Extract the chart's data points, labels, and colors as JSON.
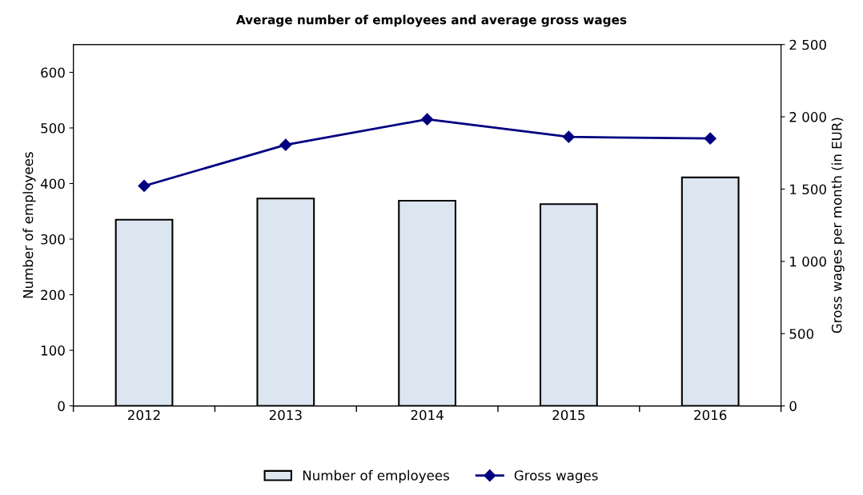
{
  "chart_data": {
    "type": "bar",
    "title": "Average number of employees and average gross wages",
    "categories": [
      "2012",
      "2013",
      "2014",
      "2015",
      "2016"
    ],
    "series": [
      {
        "name": "Number of employees",
        "color": "#dce6f1",
        "values": [
          335,
          373,
          369,
          363,
          411
        ]
      },
      {
        "name": "Gross wages",
        "type": "line",
        "axis": "y2",
        "color": "#000080",
        "marker": "diamond",
        "values": [
          1522,
          1806,
          1983,
          1861,
          1850
        ]
      }
    ],
    "ylabel": "Number of employees",
    "y2label": "Gross wages per month (in EUR)",
    "ylim": [
      0,
      650
    ],
    "yticks": [
      0,
      100,
      200,
      300,
      400,
      500,
      600
    ],
    "y2lim": [
      0,
      2500
    ],
    "y2ticks": [
      0,
      {
        "value": 500,
        "label": "500"
      },
      {
        "value": 1000,
        "label": "1 000"
      },
      {
        "value": 1500,
        "label": "1 500"
      },
      {
        "value": 2000,
        "label": "2 000"
      },
      {
        "value": 2500,
        "label": "2 500"
      }
    ],
    "grid": false,
    "legend": "bottom"
  }
}
